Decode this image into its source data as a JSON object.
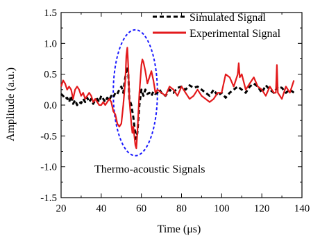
{
  "chart_data": {
    "type": "line",
    "xlabel": "Time (μs)",
    "ylabel": "Amplitude (a.u.)",
    "xlim": [
      20,
      140
    ],
    "ylim": [
      -1.5,
      1.5
    ],
    "xticks": [
      20,
      40,
      60,
      80,
      100,
      120,
      140
    ],
    "yticks": [
      -1.5,
      -1.0,
      -0.5,
      0.0,
      0.5,
      1.0,
      1.5
    ],
    "xtick_labels": [
      "20",
      "40",
      "60",
      "80",
      "100",
      "120",
      "140"
    ],
    "ytick_labels": [
      "-1.5",
      "-1.0",
      "-0.5",
      "0.0",
      "0.5",
      "1.0",
      "1.5"
    ],
    "legend_position": "top-right",
    "annotation": "Thermo-acoustic Signals",
    "highlight_ellipse": {
      "center": [
        57,
        0.2
      ],
      "x_halfwidth": 11,
      "y_halfwidth": 1.02,
      "color": "#1a1aff"
    },
    "series": [
      {
        "name": "Simulated Signal",
        "color": "#000000",
        "style": "dashed",
        "x": [
          20,
          21,
          22,
          23,
          24,
          25,
          26,
          27,
          28,
          29,
          30,
          31,
          32,
          33,
          34,
          35,
          36,
          37,
          38,
          39,
          40,
          41,
          42,
          43,
          44,
          45,
          46,
          47,
          48,
          49,
          50,
          51,
          52,
          53,
          53.5,
          54,
          55,
          56,
          57,
          57.5,
          58,
          59,
          60,
          61,
          62,
          63,
          64,
          65,
          66,
          67,
          68,
          69,
          70,
          72,
          74,
          76,
          78,
          80,
          82,
          84,
          86,
          88,
          90,
          92,
          94,
          96,
          98,
          100,
          102,
          104,
          106,
          108,
          110,
          112,
          114,
          116,
          118,
          120,
          122,
          124,
          126,
          128,
          130,
          132,
          134,
          136
        ],
        "y": [
          0.18,
          0.15,
          0.1,
          0.12,
          0.05,
          0.15,
          0.02,
          0.08,
          0.0,
          0.05,
          0.03,
          0.1,
          0.05,
          0.12,
          0.05,
          0.1,
          0.02,
          0.08,
          0.1,
          0.05,
          0.15,
          0.1,
          0.05,
          0.12,
          0.08,
          0.15,
          0.12,
          0.2,
          0.18,
          0.25,
          0.3,
          0.2,
          0.45,
          0.62,
          0.5,
          0.1,
          0.0,
          -0.2,
          -0.48,
          -0.55,
          -0.45,
          0.0,
          0.25,
          0.15,
          0.25,
          0.18,
          0.2,
          0.15,
          0.22,
          0.18,
          0.2,
          0.25,
          0.2,
          0.15,
          0.25,
          0.2,
          0.28,
          0.3,
          0.25,
          0.32,
          0.28,
          0.3,
          0.25,
          0.2,
          0.15,
          0.25,
          0.15,
          0.2,
          0.12,
          0.2,
          0.25,
          0.3,
          0.25,
          0.2,
          0.3,
          0.35,
          0.3,
          0.2,
          0.32,
          0.25,
          0.2,
          0.3,
          0.28,
          0.2,
          0.25,
          0.2
        ]
      },
      {
        "name": "Experimental Signal",
        "color": "#e31a1c",
        "style": "solid",
        "x": [
          20,
          21,
          22,
          23,
          24,
          25,
          26,
          27,
          28,
          29,
          30,
          31,
          32,
          33,
          34,
          35,
          36,
          37,
          38,
          39,
          40,
          41,
          42,
          43,
          44,
          45,
          46,
          47,
          48,
          49,
          50,
          51,
          52,
          52.5,
          53,
          53.5,
          54,
          55,
          55.5,
          56,
          57,
          57.5,
          58,
          59,
          60,
          60.5,
          61,
          62,
          63,
          64,
          65,
          66,
          67,
          68,
          70,
          72,
          74,
          76,
          78,
          80,
          82,
          84,
          86,
          88,
          90,
          92,
          94,
          96,
          98,
          100,
          102,
          104,
          106,
          108,
          108.5,
          109,
          110,
          112,
          114,
          116,
          118,
          120,
          122,
          124,
          126,
          127,
          127.5,
          128,
          130,
          132,
          134,
          136
        ],
        "y": [
          0.3,
          0.4,
          0.35,
          0.25,
          0.3,
          0.25,
          0.1,
          0.25,
          0.3,
          0.25,
          0.15,
          0.2,
          0.1,
          0.15,
          0.2,
          0.15,
          0.05,
          0.1,
          0.05,
          0.0,
          0.0,
          0.05,
          0.0,
          0.05,
          0.1,
          0.05,
          -0.1,
          -0.15,
          -0.3,
          -0.35,
          -0.3,
          0.0,
          0.4,
          0.8,
          0.93,
          0.6,
          0.1,
          -0.3,
          -0.45,
          -0.35,
          -0.65,
          -0.7,
          -0.45,
          0.2,
          0.65,
          0.74,
          0.7,
          0.55,
          0.35,
          0.45,
          0.55,
          0.4,
          0.2,
          0.25,
          0.2,
          0.15,
          0.3,
          0.25,
          0.15,
          0.3,
          0.2,
          0.1,
          0.15,
          0.25,
          0.15,
          0.1,
          0.05,
          0.1,
          0.2,
          0.2,
          0.5,
          0.45,
          0.3,
          0.5,
          0.68,
          0.45,
          0.5,
          0.25,
          0.35,
          0.45,
          0.3,
          0.25,
          0.15,
          0.3,
          0.2,
          0.2,
          0.65,
          0.2,
          0.1,
          0.3,
          0.2,
          0.4
        ]
      }
    ]
  }
}
